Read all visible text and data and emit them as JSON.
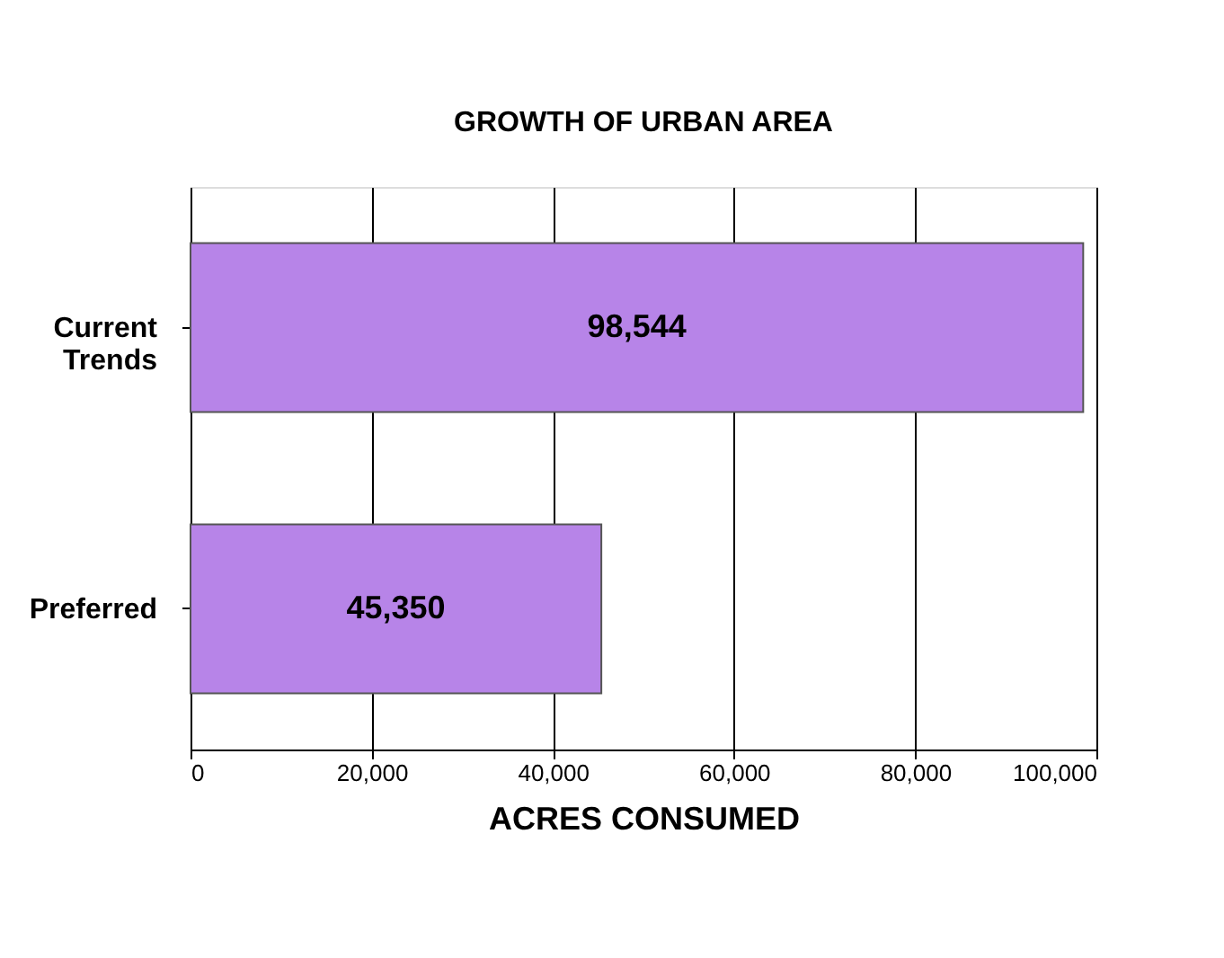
{
  "chart_data": {
    "type": "bar",
    "orientation": "horizontal",
    "title": "GROWTH OF URBAN AREA",
    "xlabel": "ACRES CONSUMED",
    "categories": [
      "Current Trends",
      "Preferred"
    ],
    "values": [
      98544,
      45350
    ],
    "value_labels": [
      "98,544",
      "45,350"
    ],
    "color": "#b784e8",
    "xlim": [
      0,
      100000
    ],
    "xticks": [
      {
        "value": 0,
        "label": "0"
      },
      {
        "value": 20000,
        "label": "20,000"
      },
      {
        "value": 40000,
        "label": "40,000"
      },
      {
        "value": 60000,
        "label": "60,000"
      },
      {
        "value": 80000,
        "label": "80,000"
      },
      {
        "value": 100000,
        "label": "100,000"
      }
    ],
    "grid": "x"
  }
}
